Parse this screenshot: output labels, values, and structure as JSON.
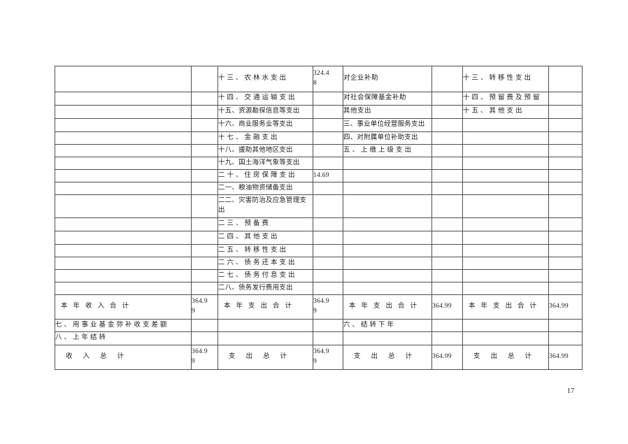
{
  "page": {
    "number": "17"
  },
  "budget_table": {
    "rows": [
      {
        "cells": [
          "",
          "",
          {
            "t": "十三、农林水支出",
            "s": "item"
          },
          {
            "t": "324.4\n8",
            "s": "num"
          },
          {
            "t": "对企业补助",
            "s": "sub"
          },
          "",
          {
            "t": "十三、转移性支出",
            "s": "item"
          },
          ""
        ]
      },
      {
        "cells": [
          "",
          "",
          {
            "t": "十四、交通运输支出",
            "s": "item"
          },
          "",
          {
            "t": "对社会保障基金补助",
            "s": "sub"
          },
          "",
          {
            "t": "十四、预留费及预留",
            "s": "item"
          },
          ""
        ]
      },
      {
        "cells": [
          "",
          "",
          {
            "t": "十五、资源勘探信息等支出",
            "s": "itemw"
          },
          "",
          {
            "t": "其他支出",
            "s": "sub"
          },
          "",
          {
            "t": "十五、其他支出",
            "s": "item"
          },
          ""
        ]
      },
      {
        "cells": [
          "",
          "",
          {
            "t": "十六、商业服务业等支出",
            "s": "itemw"
          },
          "",
          {
            "t": "三、事业单位经营服务支出",
            "s": "itemw"
          },
          "",
          "",
          ""
        ]
      },
      {
        "cells": [
          "",
          "",
          {
            "t": "十七、金融支出",
            "s": "item"
          },
          "",
          {
            "t": "四、对附属单位补助支出",
            "s": "itemw"
          },
          "",
          "",
          ""
        ]
      },
      {
        "cells": [
          "",
          "",
          {
            "t": "十八、援助其他地区支出",
            "s": "itemw"
          },
          "",
          {
            "t": "五、上缴上级支出",
            "s": "item"
          },
          "",
          "",
          ""
        ]
      },
      {
        "cells": [
          "",
          "",
          {
            "t": "十九、国土海洋气象等支出",
            "s": "itemw"
          },
          "",
          "",
          "",
          "",
          ""
        ]
      },
      {
        "cells": [
          "",
          "",
          {
            "t": "二十、住房保障支出",
            "s": "item"
          },
          {
            "t": "14.69",
            "s": "num"
          },
          "",
          "",
          "",
          ""
        ]
      },
      {
        "cells": [
          "",
          "",
          {
            "t": "二一、粮油物资储备支出",
            "s": "itemw"
          },
          "",
          "",
          "",
          "",
          ""
        ]
      },
      {
        "cells": [
          "",
          "",
          {
            "t": "二二、灾害防治及应急管理支出",
            "s": "itemw"
          },
          "",
          "",
          "",
          "",
          ""
        ]
      },
      {
        "cells": [
          "",
          "",
          {
            "t": "二三、预备费",
            "s": "item"
          },
          "",
          "",
          "",
          "",
          ""
        ]
      },
      {
        "cells": [
          "",
          "",
          {
            "t": "二四、其他支出",
            "s": "item"
          },
          "",
          "",
          "",
          "",
          ""
        ]
      },
      {
        "cells": [
          "",
          "",
          {
            "t": "二五、转移性支出",
            "s": "item"
          },
          "",
          "",
          "",
          "",
          ""
        ]
      },
      {
        "cells": [
          "",
          "",
          {
            "t": "二六、债务还本支出",
            "s": "item"
          },
          "",
          "",
          "",
          "",
          ""
        ]
      },
      {
        "cells": [
          "",
          "",
          {
            "t": "二七、债务付息支出",
            "s": "item"
          },
          "",
          "",
          "",
          "",
          ""
        ]
      },
      {
        "cells": [
          "",
          "",
          {
            "t": "二八、债务发行费用支出",
            "s": "itemw"
          },
          "",
          "",
          "",
          "",
          ""
        ]
      },
      {
        "cells": [
          {
            "t": "本年收入合计",
            "s": "total"
          },
          {
            "t": "364.9\n9",
            "s": "num"
          },
          {
            "t": "本年支出合计",
            "s": "total"
          },
          {
            "t": "364.9\n9",
            "s": "num"
          },
          {
            "t": "本年支出合计",
            "s": "total"
          },
          {
            "t": "364.99",
            "s": "num"
          },
          {
            "t": "本年支出合计",
            "s": "total"
          },
          {
            "t": "364.99",
            "s": "num"
          }
        ]
      },
      {
        "cells": [
          {
            "t": "七、用事业基金弥补收支差额",
            "s": "item"
          },
          "",
          "",
          "",
          {
            "t": "六、结转下年",
            "s": "item"
          },
          "",
          "",
          ""
        ]
      },
      {
        "cells": [
          {
            "t": "八、上年结转",
            "s": "item"
          },
          "",
          "",
          "",
          "",
          "",
          "",
          ""
        ]
      },
      {
        "cells": [
          {
            "t": "收入总计",
            "s": "totalw"
          },
          {
            "t": "364.9\n9",
            "s": "num"
          },
          {
            "t": "支出总计",
            "s": "totalw"
          },
          {
            "t": "364.9\n9",
            "s": "num"
          },
          {
            "t": "支出总计",
            "s": "totalw"
          },
          {
            "t": "364.99",
            "s": "num"
          },
          {
            "t": "支出总计",
            "s": "totalw"
          },
          {
            "t": "364.99",
            "s": "num"
          }
        ]
      }
    ]
  }
}
